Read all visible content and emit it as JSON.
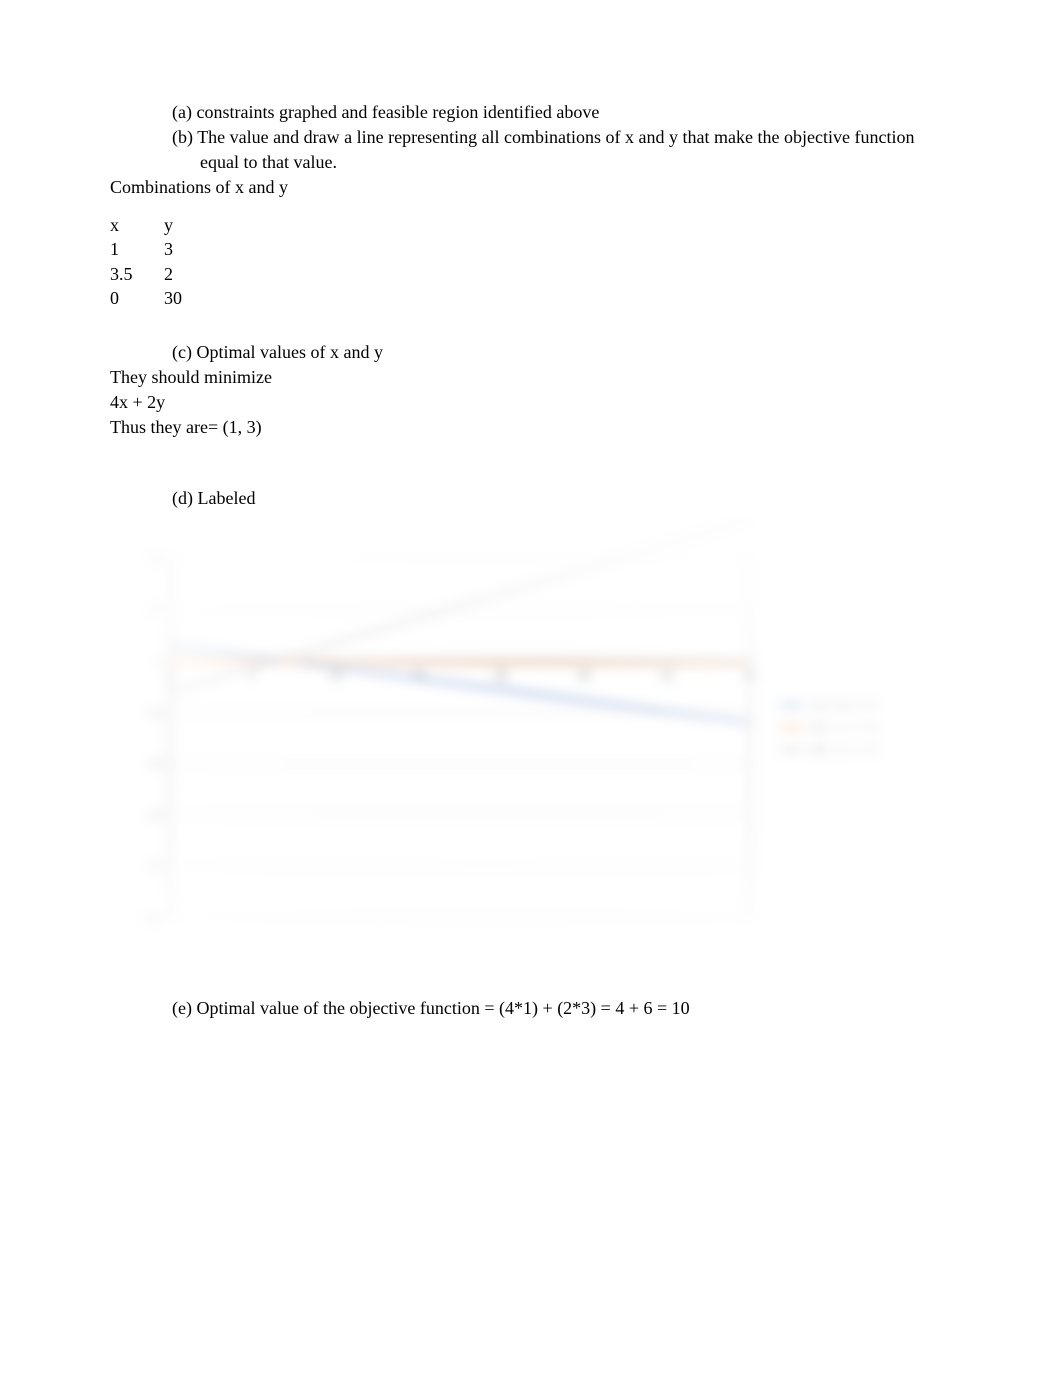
{
  "body": {
    "a": {
      "label": "(a)",
      "text": "constraints graphed and feasible region identified above"
    },
    "b": {
      "label": "(b)",
      "text": "The value and draw a line representing all combinations of x and y that make the objective function equal to that value."
    },
    "combos_label": "Combinations of x and y",
    "table": {
      "headers": {
        "x": "x",
        "y": "y"
      },
      "rows": [
        {
          "x": "1",
          "y": "3"
        },
        {
          "x": "3.5",
          "y": "2"
        },
        {
          "x": "0",
          "y": "30"
        }
      ]
    },
    "c": {
      "label": "(c)",
      "text": "Optimal values of x and y",
      "lines": [
        "They should minimize",
        "4x + 2y",
        "Thus they are= (1, 3)"
      ]
    },
    "d": {
      "label": "(d)",
      "text": "Labeled"
    },
    "chart": {
      "background_color": "#ffffff",
      "plot_background": "#ffffff",
      "grid_color": "#d9d9d9",
      "axis_color": "#7f7f7f",
      "tick_color": "#7f7f7f",
      "text_color": "#595959",
      "font_size": 11,
      "xlim": [
        0,
        35
      ],
      "ylim": [
        -100,
        40
      ],
      "xtick_step": 5,
      "ytick_step": 20,
      "series": [
        {
          "name": "12x+14y>=85",
          "color": "#4472c4",
          "width": 2,
          "x": [
            0,
            35
          ],
          "y": [
            6.07,
            -23.93
          ]
        },
        {
          "name": "x00+y>=00",
          "color": "#ed7d31",
          "width": 2,
          "x": [
            0,
            35
          ],
          "y": [
            0,
            -1
          ]
        },
        {
          "name": "x00+y>=00_2",
          "color": "#a5a5a5",
          "width": 2,
          "x": [
            0,
            35
          ],
          "y": [
            -12,
            55
          ]
        }
      ],
      "legend": {
        "position": "right",
        "items": [
          {
            "label": "12x+14y>=85",
            "color": "#4472c4"
          },
          {
            "label": "x00 + y >= 00",
            "color": "#ed7d31"
          },
          {
            "label": "x00 + y >= 00",
            "color": "#a5a5a5"
          }
        ]
      }
    },
    "e": {
      "label": "(e)",
      "text": "Optimal value of the objective function = (4*1) + (2*3) = 4 + 6 = 10"
    }
  }
}
